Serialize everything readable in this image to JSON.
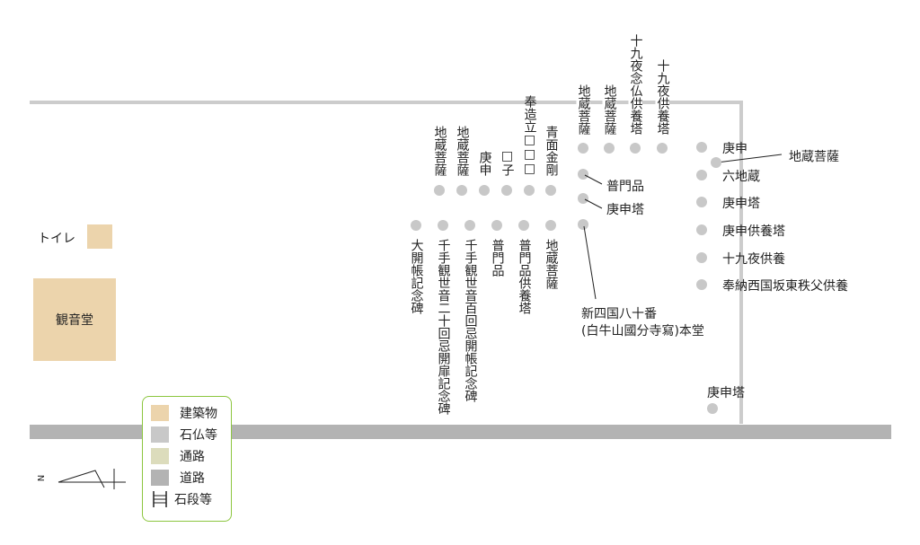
{
  "colors": {
    "building": "#ecd4ac",
    "stone": "#c8c8c8",
    "path": "#dcdcbc",
    "road": "#b3b3b3",
    "legend_border": "#8cc63f"
  },
  "buildings": {
    "toilet": "トイレ",
    "kannondo": "観音堂"
  },
  "row_a_above": [
    "地蔵菩薩",
    "地蔵菩薩",
    "庚申",
    "□子",
    "奉造立□□□",
    "青面金剛"
  ],
  "row_b_above": [
    "地蔵菩薩",
    "地蔵菩薩",
    "十九夜念仏供養塔",
    "十九夜供養塔"
  ],
  "row_c_below": [
    "大開帳記念碑",
    "千手観世音二十回忌開扉記念碑",
    "千手観世音百回忌開帳記念碑",
    "普門品",
    "普門品供養塔",
    "地蔵菩薩"
  ],
  "col_labels": [
    "普門品",
    "庚申塔"
  ],
  "main_hall": [
    "新四国八十番",
    "(白牛山國分寺寫)本堂"
  ],
  "right_list": [
    "庚申",
    "六地蔵",
    "庚申塔",
    "庚申供養塔",
    "十九夜供養",
    "奉納西国坂東秩父供養"
  ],
  "right_extra": "地蔵菩薩",
  "bottom_koshin": "庚申塔",
  "compass": "N",
  "legend": [
    {
      "label": "建築物",
      "color": "#ecd4ac"
    },
    {
      "label": "石仏等",
      "color": "#c8c8c8"
    },
    {
      "label": "通路",
      "color": "#dcdcbc"
    },
    {
      "label": "道路",
      "color": "#b3b3b3"
    },
    {
      "label": "石段等",
      "icon": "stairs-icon"
    }
  ]
}
